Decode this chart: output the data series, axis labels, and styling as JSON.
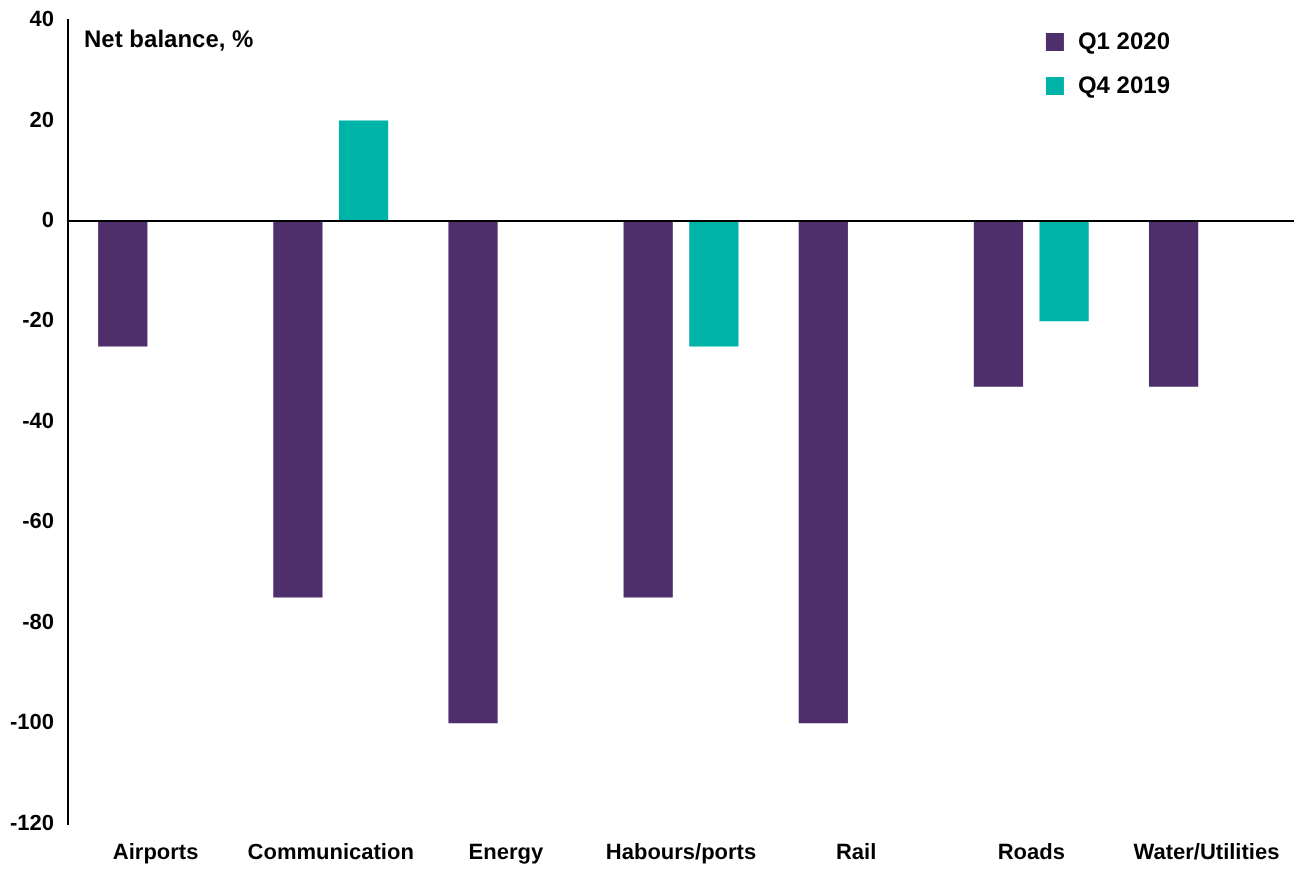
{
  "chart_data": {
    "type": "bar",
    "ylabel": "Net balance, %",
    "categories": [
      "Airports",
      "Communication",
      "Energy",
      "Habours/ports",
      "Rail",
      "Roads",
      "Water/Utilities"
    ],
    "series": [
      {
        "name": "Q1 2020",
        "color": "#4f2f6b",
        "values": [
          -25,
          -75,
          -100,
          -75,
          -100,
          -33,
          -33
        ]
      },
      {
        "name": "Q4 2019",
        "color": "#00b3a7",
        "values": [
          null,
          20,
          null,
          -25,
          null,
          -20,
          null
        ]
      }
    ],
    "ylim": [
      -120,
      40
    ],
    "yticks": [
      -120,
      -100,
      -80,
      -60,
      -40,
      -20,
      0,
      20,
      40
    ],
    "grid": false,
    "legend": "top right",
    "ref_lines": [
      {
        "axis": "y",
        "value": 0,
        "color": "#000000"
      }
    ]
  }
}
